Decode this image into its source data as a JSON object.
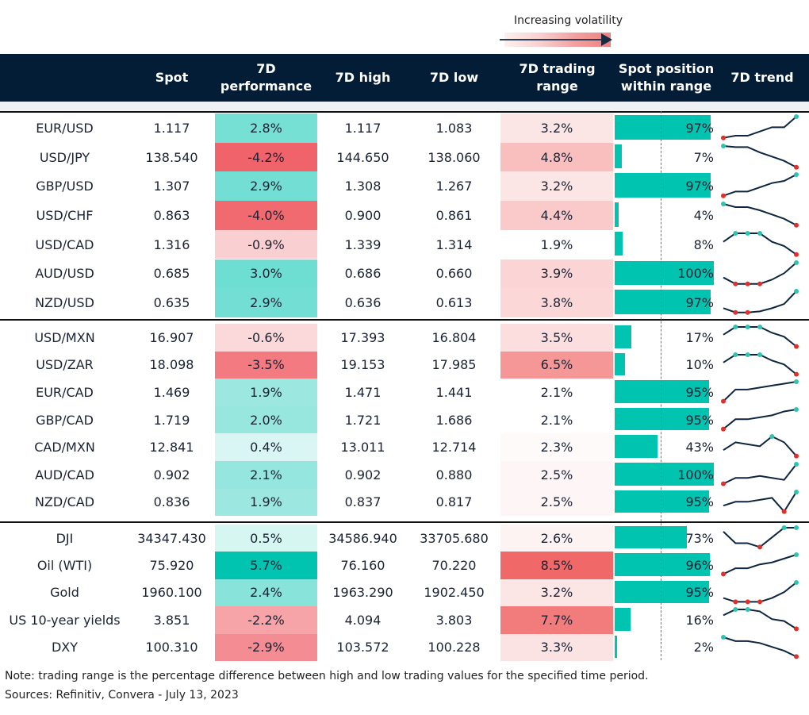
{
  "legend": {
    "label": "Increasing volatility"
  },
  "headers": [
    "",
    "Spot",
    "7D performance",
    "7D high",
    "7D low",
    "7D trading range",
    "Spot position within range",
    "7D trend"
  ],
  "colors": {
    "header": "#031d36",
    "positive": "#00c4b0",
    "negative": "#f0636a",
    "range": "#f06868",
    "bar": "#00c4b0",
    "min_marker": "#e0302a",
    "max_marker": "#2ec4b0",
    "line": "#0d2540"
  },
  "groups": [
    {
      "rows": [
        {
          "name": "EUR/USD",
          "spot": "1.117",
          "perf": 2.8,
          "perf_label": "2.8%",
          "high": "1.117",
          "low": "1.083",
          "range": 3.2,
          "range_label": "3.2%",
          "position": 97,
          "position_label": "97%",
          "trend": [
            0,
            0.1,
            0.1,
            0.3,
            0.5,
            0.5,
            1
          ]
        },
        {
          "name": "USD/JPY",
          "spot": "138.540",
          "perf": -4.2,
          "perf_label": "-4.2%",
          "high": "144.650",
          "low": "138.060",
          "range": 4.8,
          "range_label": "4.8%",
          "position": 7,
          "position_label": "7%",
          "trend": [
            1,
            0.95,
            0.95,
            0.7,
            0.5,
            0.3,
            0
          ]
        },
        {
          "name": "GBP/USD",
          "spot": "1.307",
          "perf": 2.9,
          "perf_label": "2.9%",
          "high": "1.308",
          "low": "1.267",
          "range": 3.2,
          "range_label": "3.2%",
          "position": 97,
          "position_label": "97%",
          "trend": [
            0,
            0.2,
            0.2,
            0.4,
            0.6,
            0.7,
            1
          ]
        },
        {
          "name": "USD/CHF",
          "spot": "0.863",
          "perf": -4.0,
          "perf_label": "-4.0%",
          "high": "0.900",
          "low": "0.861",
          "range": 4.4,
          "range_label": "4.4%",
          "position": 4,
          "position_label": "4%",
          "trend": [
            1,
            0.85,
            0.85,
            0.7,
            0.5,
            0.3,
            0
          ]
        },
        {
          "name": "USD/CAD",
          "spot": "1.316",
          "perf": -0.9,
          "perf_label": "-0.9%",
          "high": "1.339",
          "low": "1.314",
          "range": 1.9,
          "range_label": "1.9%",
          "position": 8,
          "position_label": "8%",
          "trend": [
            0.6,
            1,
            1,
            1,
            0.6,
            0.4,
            0
          ]
        },
        {
          "name": "AUD/USD",
          "spot": "0.685",
          "perf": 3.0,
          "perf_label": "3.0%",
          "high": "0.686",
          "low": "0.660",
          "range": 3.9,
          "range_label": "3.9%",
          "position": 100,
          "position_label": "100%",
          "trend": [
            0.3,
            0,
            0,
            0,
            0.2,
            0.5,
            1
          ]
        },
        {
          "name": "NZD/USD",
          "spot": "0.635",
          "perf": 2.9,
          "perf_label": "2.9%",
          "high": "0.636",
          "low": "0.613",
          "range": 3.8,
          "range_label": "3.8%",
          "position": 97,
          "position_label": "97%",
          "trend": [
            0.2,
            0,
            0,
            0.05,
            0.2,
            0.4,
            1
          ]
        }
      ]
    },
    {
      "rows": [
        {
          "name": "USD/MXN",
          "spot": "16.907",
          "perf": -0.6,
          "perf_label": "-0.6%",
          "high": "17.393",
          "low": "16.804",
          "range": 3.5,
          "range_label": "3.5%",
          "position": 17,
          "position_label": "17%",
          "trend": [
            0.6,
            1,
            1,
            1,
            0.7,
            0.5,
            0
          ]
        },
        {
          "name": "USD/ZAR",
          "spot": "18.098",
          "perf": -3.5,
          "perf_label": "-3.5%",
          "high": "19.153",
          "low": "17.985",
          "range": 6.5,
          "range_label": "6.5%",
          "position": 10,
          "position_label": "10%",
          "trend": [
            0.6,
            1,
            1,
            1,
            0.7,
            0.5,
            0
          ]
        },
        {
          "name": "EUR/CAD",
          "spot": "1.469",
          "perf": 1.9,
          "perf_label": "1.9%",
          "high": "1.471",
          "low": "1.441",
          "range": 2.1,
          "range_label": "2.1%",
          "position": 95,
          "position_label": "95%",
          "trend": [
            0,
            0.6,
            0.6,
            0.7,
            0.8,
            0.9,
            1
          ]
        },
        {
          "name": "GBP/CAD",
          "spot": "1.719",
          "perf": 2.0,
          "perf_label": "2.0%",
          "high": "1.721",
          "low": "1.686",
          "range": 2.1,
          "range_label": "2.1%",
          "position": 95,
          "position_label": "95%",
          "trend": [
            0,
            0.5,
            0.5,
            0.6,
            0.7,
            0.9,
            1
          ]
        },
        {
          "name": "CAD/MXN",
          "spot": "12.841",
          "perf": 0.4,
          "perf_label": "0.4%",
          "high": "13.011",
          "low": "12.714",
          "range": 2.3,
          "range_label": "2.3%",
          "position": 43,
          "position_label": "43%",
          "trend": [
            0.3,
            0.7,
            0.6,
            0.5,
            1,
            0.7,
            0
          ]
        },
        {
          "name": "AUD/CAD",
          "spot": "0.902",
          "perf": 2.1,
          "perf_label": "2.1%",
          "high": "0.902",
          "low": "0.880",
          "range": 2.5,
          "range_label": "2.5%",
          "position": 100,
          "position_label": "100%",
          "trend": [
            0,
            0.3,
            0.3,
            0.4,
            0.3,
            0.2,
            1
          ]
        },
        {
          "name": "NZD/CAD",
          "spot": "0.836",
          "perf": 1.9,
          "perf_label": "1.9%",
          "high": "0.837",
          "low": "0.817",
          "range": 2.5,
          "range_label": "2.5%",
          "position": 95,
          "position_label": "95%",
          "trend": [
            0.3,
            0.5,
            0.5,
            0.6,
            0.7,
            0,
            1
          ]
        }
      ]
    },
    {
      "rows": [
        {
          "name": "DJI",
          "spot": "34347.430",
          "perf": 0.5,
          "perf_label": "0.5%",
          "high": "34586.940",
          "low": "33705.680",
          "range": 2.6,
          "range_label": "2.6%",
          "position": 73,
          "position_label": "73%",
          "trend": [
            0.8,
            0.2,
            0.2,
            0,
            0.5,
            1,
            1
          ]
        },
        {
          "name": "Oil (WTI)",
          "spot": "75.920",
          "perf": 5.7,
          "perf_label": "5.7%",
          "high": "76.160",
          "low": "70.220",
          "range": 8.5,
          "range_label": "8.5%",
          "position": 96,
          "position_label": "96%",
          "trend": [
            0,
            0.3,
            0.3,
            0.5,
            0.6,
            0.8,
            1
          ]
        },
        {
          "name": "Gold",
          "spot": "1960.100",
          "perf": 2.4,
          "perf_label": "2.4%",
          "high": "1963.290",
          "low": "1902.450",
          "range": 3.2,
          "range_label": "3.2%",
          "position": 95,
          "position_label": "95%",
          "trend": [
            0.2,
            0,
            0,
            0,
            0.2,
            0.5,
            1
          ]
        },
        {
          "name": "US 10-year yields",
          "spot": "3.851",
          "perf": -2.2,
          "perf_label": "-2.2%",
          "high": "4.094",
          "low": "3.803",
          "range": 7.7,
          "range_label": "7.7%",
          "position": 16,
          "position_label": "16%",
          "trend": [
            0.7,
            1,
            1,
            0.9,
            0.5,
            0.4,
            0
          ]
        },
        {
          "name": "DXY",
          "spot": "100.310",
          "perf": -2.9,
          "perf_label": "-2.9%",
          "high": "103.572",
          "low": "100.228",
          "range": 3.3,
          "range_label": "3.3%",
          "position": 2,
          "position_label": "2%",
          "trend": [
            1,
            0.8,
            0.8,
            0.7,
            0.5,
            0.3,
            0
          ]
        }
      ]
    }
  ],
  "notes": {
    "note": "Note: trading range is the percentage difference between high and low trading values for the specified time period.",
    "sources": "Sources: Refinitiv, Convera - July 13, 2023"
  }
}
